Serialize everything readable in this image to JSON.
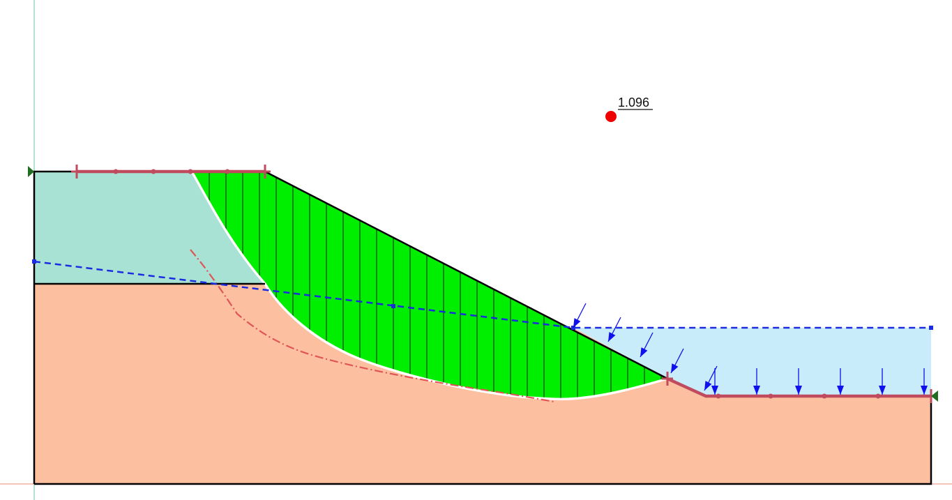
{
  "analysis": {
    "factor_of_safety": "1.096"
  },
  "colors": {
    "upper_soil": "#a8e2d4",
    "lower_soil": "#fcbf9f",
    "sliding_mass": "#00ee00",
    "water": "#c8ecfa",
    "water_table": "#1a2be0",
    "slip_surface": "#ffffff",
    "alt_slip_surface": "#e05555",
    "slip_limits": "#c04a5e",
    "grid_axis_vertical": "#7fd0b8",
    "grid_axis_horizontal": "#f0a090",
    "center_point": "#ee0000",
    "support_marker": "#1f6e1f",
    "load_arrow": "#1010ee",
    "outline": "#000000"
  },
  "icons": {
    "center": "slip-center-dot",
    "load": "down-arrow",
    "support": "triangle-marker"
  }
}
